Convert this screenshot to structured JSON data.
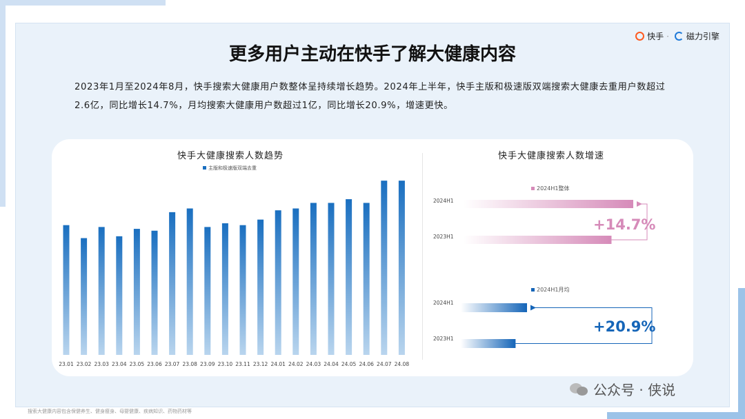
{
  "brand": {
    "name1": "快手",
    "separator": "·",
    "name2": "磁力引擎"
  },
  "title": "更多用户主动在快手了解大健康内容",
  "description": "2023年1月至2024年8月，快手搜索大健康用户数整体呈持续增长趋势。2024年上半年，快手主版和极速版双端搜索大健康去重用户数超过2.6亿，同比增长14.7%，月均搜索大健康用户数超过1亿，同比增长20.9%，增速更快。",
  "footnote": "搜索大健康内容包含保健养生、健身瘦身、母婴健康、疾病知识、药物药材等",
  "watermark": "公众号 · 侠说",
  "colors": {
    "bar": "#1a6fc0",
    "pink": "#d68bb9",
    "blue": "#1565b8"
  },
  "chart_data": [
    {
      "type": "bar",
      "title": "快手大健康搜索人数趋势",
      "legend": "主版和极速版双端去重",
      "legend_position": "top",
      "categories": [
        "23.01",
        "23.02",
        "23.03",
        "23.04",
        "23.05",
        "23.06",
        "23.07",
        "23.08",
        "23.09",
        "23.10",
        "23.11",
        "23.12",
        "24.01",
        "24.02",
        "24.03",
        "24.04",
        "24.05",
        "24.06",
        "24.07",
        "24.08"
      ],
      "values": [
        70,
        63,
        69,
        64,
        68,
        67,
        77,
        79,
        69,
        71,
        70,
        73,
        78,
        79,
        82,
        82,
        84,
        82,
        94,
        94
      ],
      "ylim": [
        0,
        100
      ],
      "grid": false
    },
    {
      "type": "bar",
      "orientation": "horizontal",
      "title": "快手大健康搜索人数增速",
      "legend": "2024H1整体",
      "categories": [
        "2024H1",
        "2023H1"
      ],
      "values": [
        114.7,
        100
      ],
      "growth_label": "+14.7%"
    },
    {
      "type": "bar",
      "orientation": "horizontal",
      "legend": "2024H1月均",
      "categories": [
        "2024H1",
        "2023H1"
      ],
      "values": [
        120.9,
        100
      ],
      "growth_label": "+20.9%"
    }
  ]
}
